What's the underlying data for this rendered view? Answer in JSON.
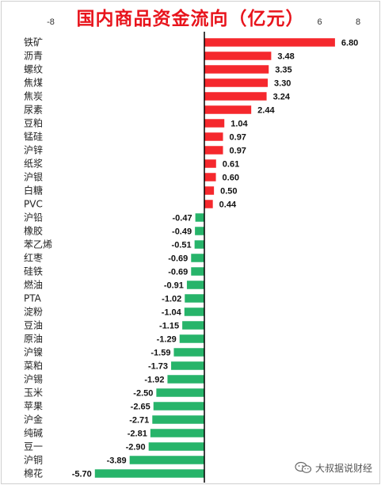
{
  "chart_data": {
    "type": "bar",
    "orientation": "horizontal",
    "title": "国内商品资金流向（亿元）",
    "xlim": [
      -8,
      8
    ],
    "xticks": [
      "-8",
      "6",
      "8"
    ],
    "categories": [
      "铁矿",
      "沥青",
      "螺纹",
      "焦煤",
      "焦炭",
      "尿素",
      "豆粕",
      "锰硅",
      "沪锌",
      "纸浆",
      "沪银",
      "白糖",
      "PVC",
      "沪铅",
      "橡胶",
      "苯乙烯",
      "红枣",
      "硅铁",
      "燃油",
      "PTA",
      "淀粉",
      "豆油",
      "原油",
      "沪镍",
      "菜粕",
      "沪锡",
      "玉米",
      "苹果",
      "沪金",
      "纯碱",
      "豆一",
      "沪铜",
      "棉花"
    ],
    "values": [
      6.8,
      3.48,
      3.35,
      3.3,
      3.24,
      2.44,
      1.04,
      0.97,
      0.97,
      0.61,
      0.6,
      0.5,
      0.44,
      -0.47,
      -0.49,
      -0.51,
      -0.69,
      -0.69,
      -0.91,
      -1.02,
      -1.04,
      -1.15,
      -1.29,
      -1.59,
      -1.73,
      -1.92,
      -2.5,
      -2.65,
      -2.71,
      -2.81,
      -2.9,
      -3.89,
      -5.7
    ],
    "labels": [
      "6.80",
      "3.48",
      "3.35",
      "3.30",
      "3.24",
      "2.44",
      "1.04",
      "0.97",
      "0.97",
      "0.61",
      "0.60",
      "0.50",
      "0.44",
      "-0.47",
      "-0.49",
      "-0.51",
      "-0.69",
      "-0.69",
      "-0.91",
      "-1.02",
      "-1.04",
      "-1.15",
      "-1.29",
      "-1.59",
      "-1.73",
      "-1.92",
      "-2.50",
      "-2.65",
      "-2.71",
      "-2.81",
      "-2.90",
      "-3.89",
      "-5.70"
    ],
    "positive_color": "#f5282d",
    "negative_color": "#27b46a",
    "grid": false,
    "legend": "none"
  },
  "watermark": {
    "text": "大叔据说财经",
    "icon": "wechat-icon"
  },
  "colors": {
    "title": "#e8141c",
    "axis": "#000000"
  }
}
